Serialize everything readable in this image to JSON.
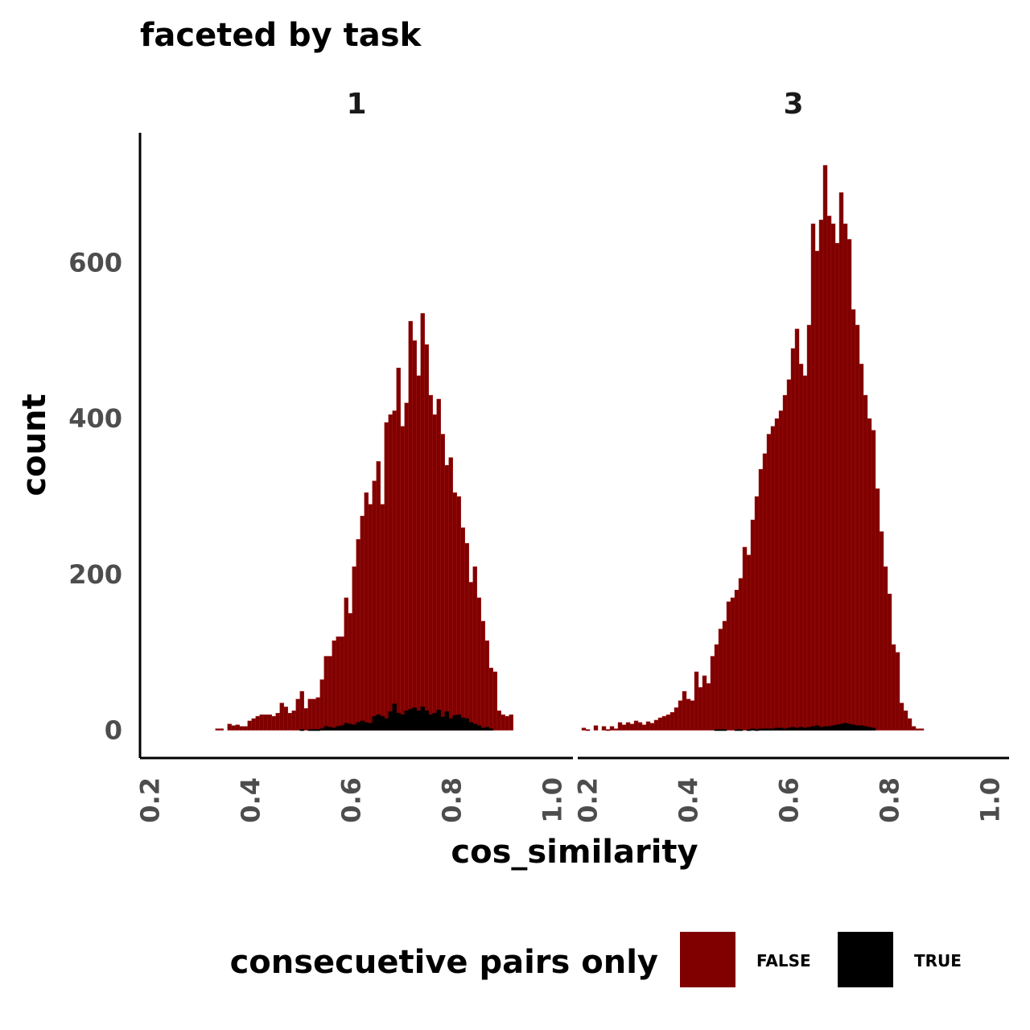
{
  "chart_data": {
    "type": "histogram",
    "title": "faceted by task",
    "xlabel": "cos_similarity",
    "ylabel": "count",
    "facet_by": "task",
    "facets": [
      "1",
      "3"
    ],
    "xlim": [
      0.18,
      1.02
    ],
    "ylim": [
      -45,
      760
    ],
    "x_ticks": [
      0.2,
      0.4,
      0.6,
      0.8,
      1.0
    ],
    "x_tick_labels": [
      "0.2",
      "0.4",
      "0.6",
      "0.8",
      "1.0"
    ],
    "y_ticks": [
      0,
      200,
      400,
      600
    ],
    "bin_width": 0.008,
    "legend": {
      "title": "consecuetive pairs only",
      "position": "bottom",
      "entries": [
        {
          "label": "FALSE",
          "color": "#800000"
        },
        {
          "label": "TRUE",
          "color": "#000000"
        }
      ]
    },
    "panels": [
      {
        "facet": "1",
        "x_start": 0.33,
        "series": [
          {
            "name": "FALSE",
            "color": "#800000",
            "values": [
              2,
              2,
              0,
              8,
              6,
              7,
              5,
              5,
              12,
              15,
              18,
              20,
              20,
              20,
              18,
              22,
              35,
              30,
              22,
              25,
              40,
              50,
              28,
              40,
              40,
              42,
              65,
              95,
              95,
              115,
              120,
              120,
              170,
              150,
              210,
              245,
              275,
              305,
              290,
              320,
              345,
              290,
              395,
              405,
              410,
              465,
              390,
              420,
              525,
              500,
              455,
              535,
              495,
              430,
              405,
              425,
              380,
              340,
              350,
              305,
              300,
              260,
              240,
              190,
              210,
              170,
              140,
              115,
              80,
              75,
              25,
              20,
              18,
              20
            ]
          },
          {
            "name": "TRUE",
            "color": "#000000",
            "values": [
              0,
              0,
              0,
              0,
              0,
              0,
              0,
              0,
              0,
              0,
              0,
              0,
              0,
              0,
              0,
              0,
              0,
              0,
              0,
              0,
              0,
              1,
              0,
              1,
              1,
              1,
              2,
              5,
              4,
              3,
              5,
              6,
              9,
              8,
              7,
              10,
              12,
              10,
              9,
              18,
              20,
              18,
              15,
              24,
              34,
              22,
              20,
              25,
              27,
              29,
              25,
              30,
              25,
              20,
              22,
              26,
              17,
              24,
              15,
              19,
              20,
              16,
              15,
              10,
              8,
              6,
              3,
              4,
              2,
              0,
              0,
              0,
              0,
              0
            ]
          }
        ]
      },
      {
        "facet": "3",
        "x_start": 0.18,
        "series": [
          {
            "name": "FALSE",
            "color": "#800000",
            "values": [
              0,
              3,
              1,
              0,
              6,
              0,
              5,
              1,
              5,
              2,
              10,
              7,
              10,
              8,
              12,
              10,
              7,
              11,
              9,
              13,
              16,
              18,
              20,
              23,
              29,
              38,
              50,
              40,
              38,
              75,
              55,
              70,
              60,
              95,
              110,
              130,
              140,
              165,
              170,
              180,
              195,
              235,
              225,
              270,
              300,
              335,
              355,
              380,
              390,
              400,
              410,
              430,
              450,
              490,
              515,
              470,
              455,
              520,
              650,
              615,
              655,
              725,
              660,
              650,
              625,
              690,
              650,
              630,
              540,
              520,
              470,
              430,
              400,
              385,
              310,
              255,
              210,
              175,
              110,
              100,
              35,
              25,
              15,
              5,
              2,
              2
            ]
          },
          {
            "name": "TRUE",
            "color": "#000000",
            "values": [
              0,
              0,
              0,
              0,
              0,
              0,
              0,
              0,
              0,
              0,
              0,
              0,
              0,
              0,
              0,
              0,
              0,
              0,
              0,
              0,
              0,
              0,
              0,
              0,
              0,
              0,
              0,
              0,
              0,
              0,
              0,
              0,
              0,
              0,
              1,
              1,
              1,
              0,
              0,
              1,
              1,
              0,
              1,
              2,
              1,
              2,
              2,
              2,
              2,
              3,
              3,
              2,
              3,
              4,
              3,
              4,
              3,
              4,
              5,
              6,
              4,
              5,
              5,
              6,
              7,
              8,
              9,
              8,
              7,
              6,
              6,
              5,
              4,
              3,
              0,
              0,
              0,
              0,
              0,
              0,
              0,
              0,
              0,
              0,
              0,
              0
            ]
          }
        ]
      }
    ]
  }
}
